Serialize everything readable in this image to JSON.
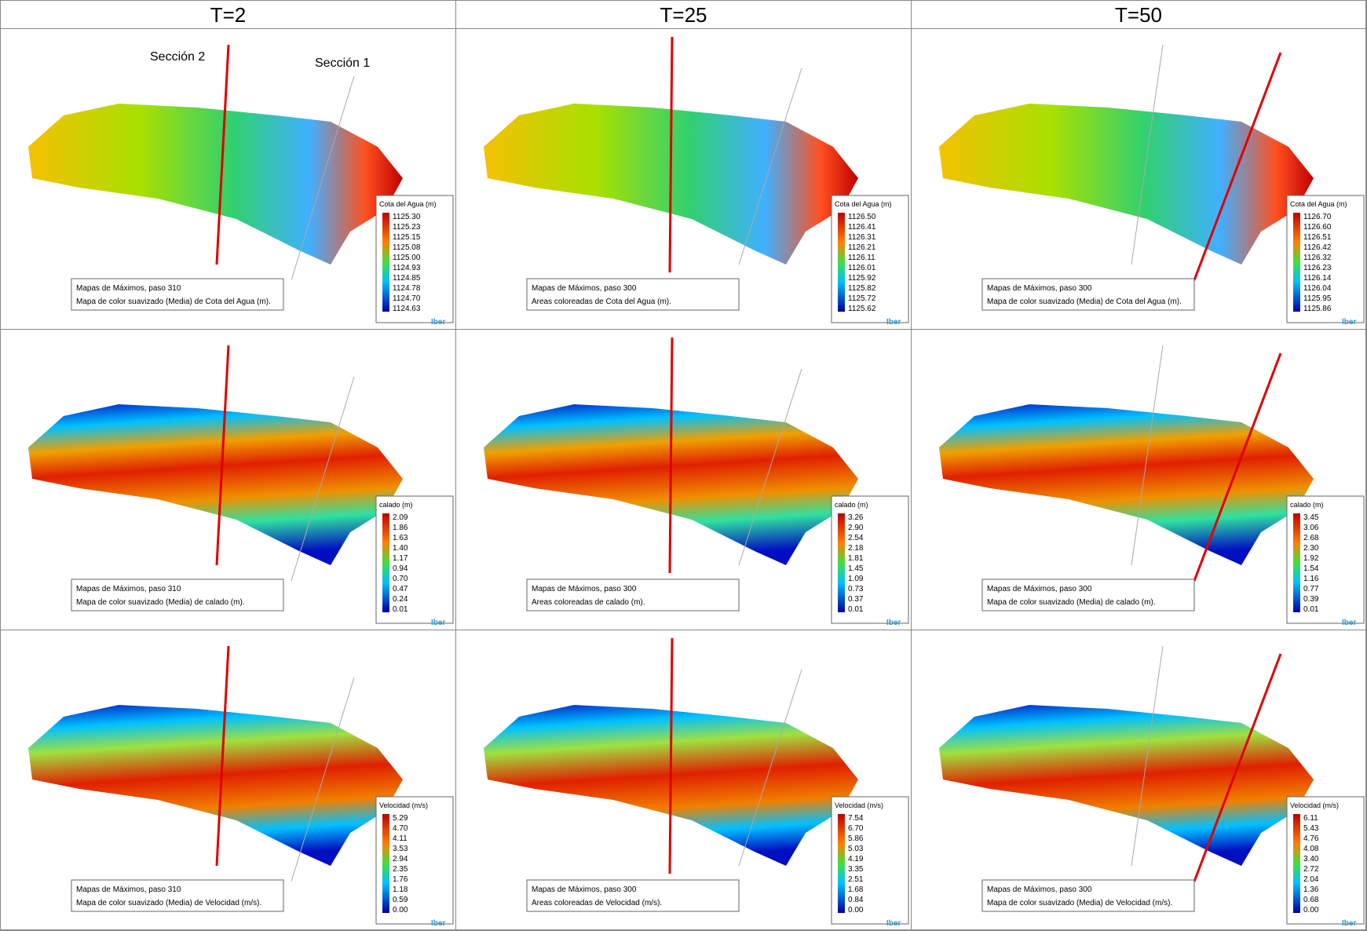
{
  "header": [
    "T=2",
    "T=25",
    "T=50"
  ],
  "sections": [
    "Sección 2",
    "Sección 1"
  ],
  "logo": "Iber",
  "columns": [
    {
      "rows": [
        {
          "legend_title": "Cota del Agua (m)",
          "legend_values": [
            "1125.30",
            "1125.23",
            "1125.15",
            "1125.08",
            "1125.00",
            "1124.93",
            "1124.85",
            "1124.78",
            "1124.70",
            "1124.63"
          ],
          "caption": [
            "Mapas de Máximos, paso 310",
            "Mapa de color suavizado (Media) de Cota del Agua (m)."
          ]
        },
        {
          "legend_title": "calado (m)",
          "legend_values": [
            "2.09",
            "1.86",
            "1.63",
            "1.40",
            "1.17",
            "0.94",
            "0.70",
            "0.47",
            "0.24",
            "0.01"
          ],
          "caption": [
            "Mapas de Máximos, paso 310",
            "Mapa de color suavizado (Media) de calado (m)."
          ]
        },
        {
          "legend_title": "Velocidad (m/s)",
          "legend_values": [
            "5.29",
            "4.70",
            "4.11",
            "3.53",
            "2.94",
            "2.35",
            "1.76",
            "1.18",
            "0.59",
            "0.00"
          ],
          "caption": [
            "Mapas de Máximos, paso 310",
            "Mapa de color suavizado (Media) de Velocidad (m/s)."
          ]
        }
      ]
    },
    {
      "rows": [
        {
          "legend_title": "Cota del Agua (m)",
          "legend_values": [
            "1126.50",
            "1126.41",
            "1126.31",
            "1126.21",
            "1126.11",
            "1126.01",
            "1125.92",
            "1125.82",
            "1125.72",
            "1125.62"
          ],
          "caption": [
            "Mapas de Máximos, paso 300",
            "Areas coloreadas de Cota del Agua (m)."
          ]
        },
        {
          "legend_title": "calado (m)",
          "legend_values": [
            "3.26",
            "2.90",
            "2.54",
            "2.18",
            "1.81",
            "1.45",
            "1.09",
            "0.73",
            "0.37",
            "0.01"
          ],
          "caption": [
            "Mapas de Máximos, paso 300",
            "Areas coloreadas de calado (m)."
          ]
        },
        {
          "legend_title": "Velocidad (m/s)",
          "legend_values": [
            "7.54",
            "6.70",
            "5.86",
            "5.03",
            "4.19",
            "3.35",
            "2.51",
            "1.68",
            "0.84",
            "0.00"
          ],
          "caption": [
            "Mapas de Máximos, paso 300",
            "Areas coloreadas de Velocidad (m/s)."
          ]
        }
      ]
    },
    {
      "rows": [
        {
          "legend_title": "Cota del Agua (m)",
          "legend_values": [
            "1126.70",
            "1126.60",
            "1126.51",
            "1126.42",
            "1126.32",
            "1126.23",
            "1126.14",
            "1126.04",
            "1125.95",
            "1125.86"
          ],
          "caption": [
            "Mapas de Máximos, paso 300",
            "Mapa de color suavizado (Media) de Cota del Agua (m)."
          ]
        },
        {
          "legend_title": "calado (m)",
          "legend_values": [
            "3.45",
            "3.06",
            "2.68",
            "2.30",
            "1.92",
            "1.54",
            "1.16",
            "0.77",
            "0.39",
            "0.01"
          ],
          "caption": [
            "Mapas de Máximos, paso 300",
            "Mapa de color suavizado (Media) de calado (m)."
          ]
        },
        {
          "legend_title": "Velocidad (m/s)",
          "legend_values": [
            "6.11",
            "5.43",
            "4.76",
            "4.08",
            "3.40",
            "2.72",
            "2.04",
            "1.36",
            "0.68",
            "0.00"
          ],
          "caption": [
            "Mapas de Máximos, paso 300",
            "Mapa de color suavizado (Media) de Velocidad (m/s)."
          ]
        }
      ]
    }
  ]
}
